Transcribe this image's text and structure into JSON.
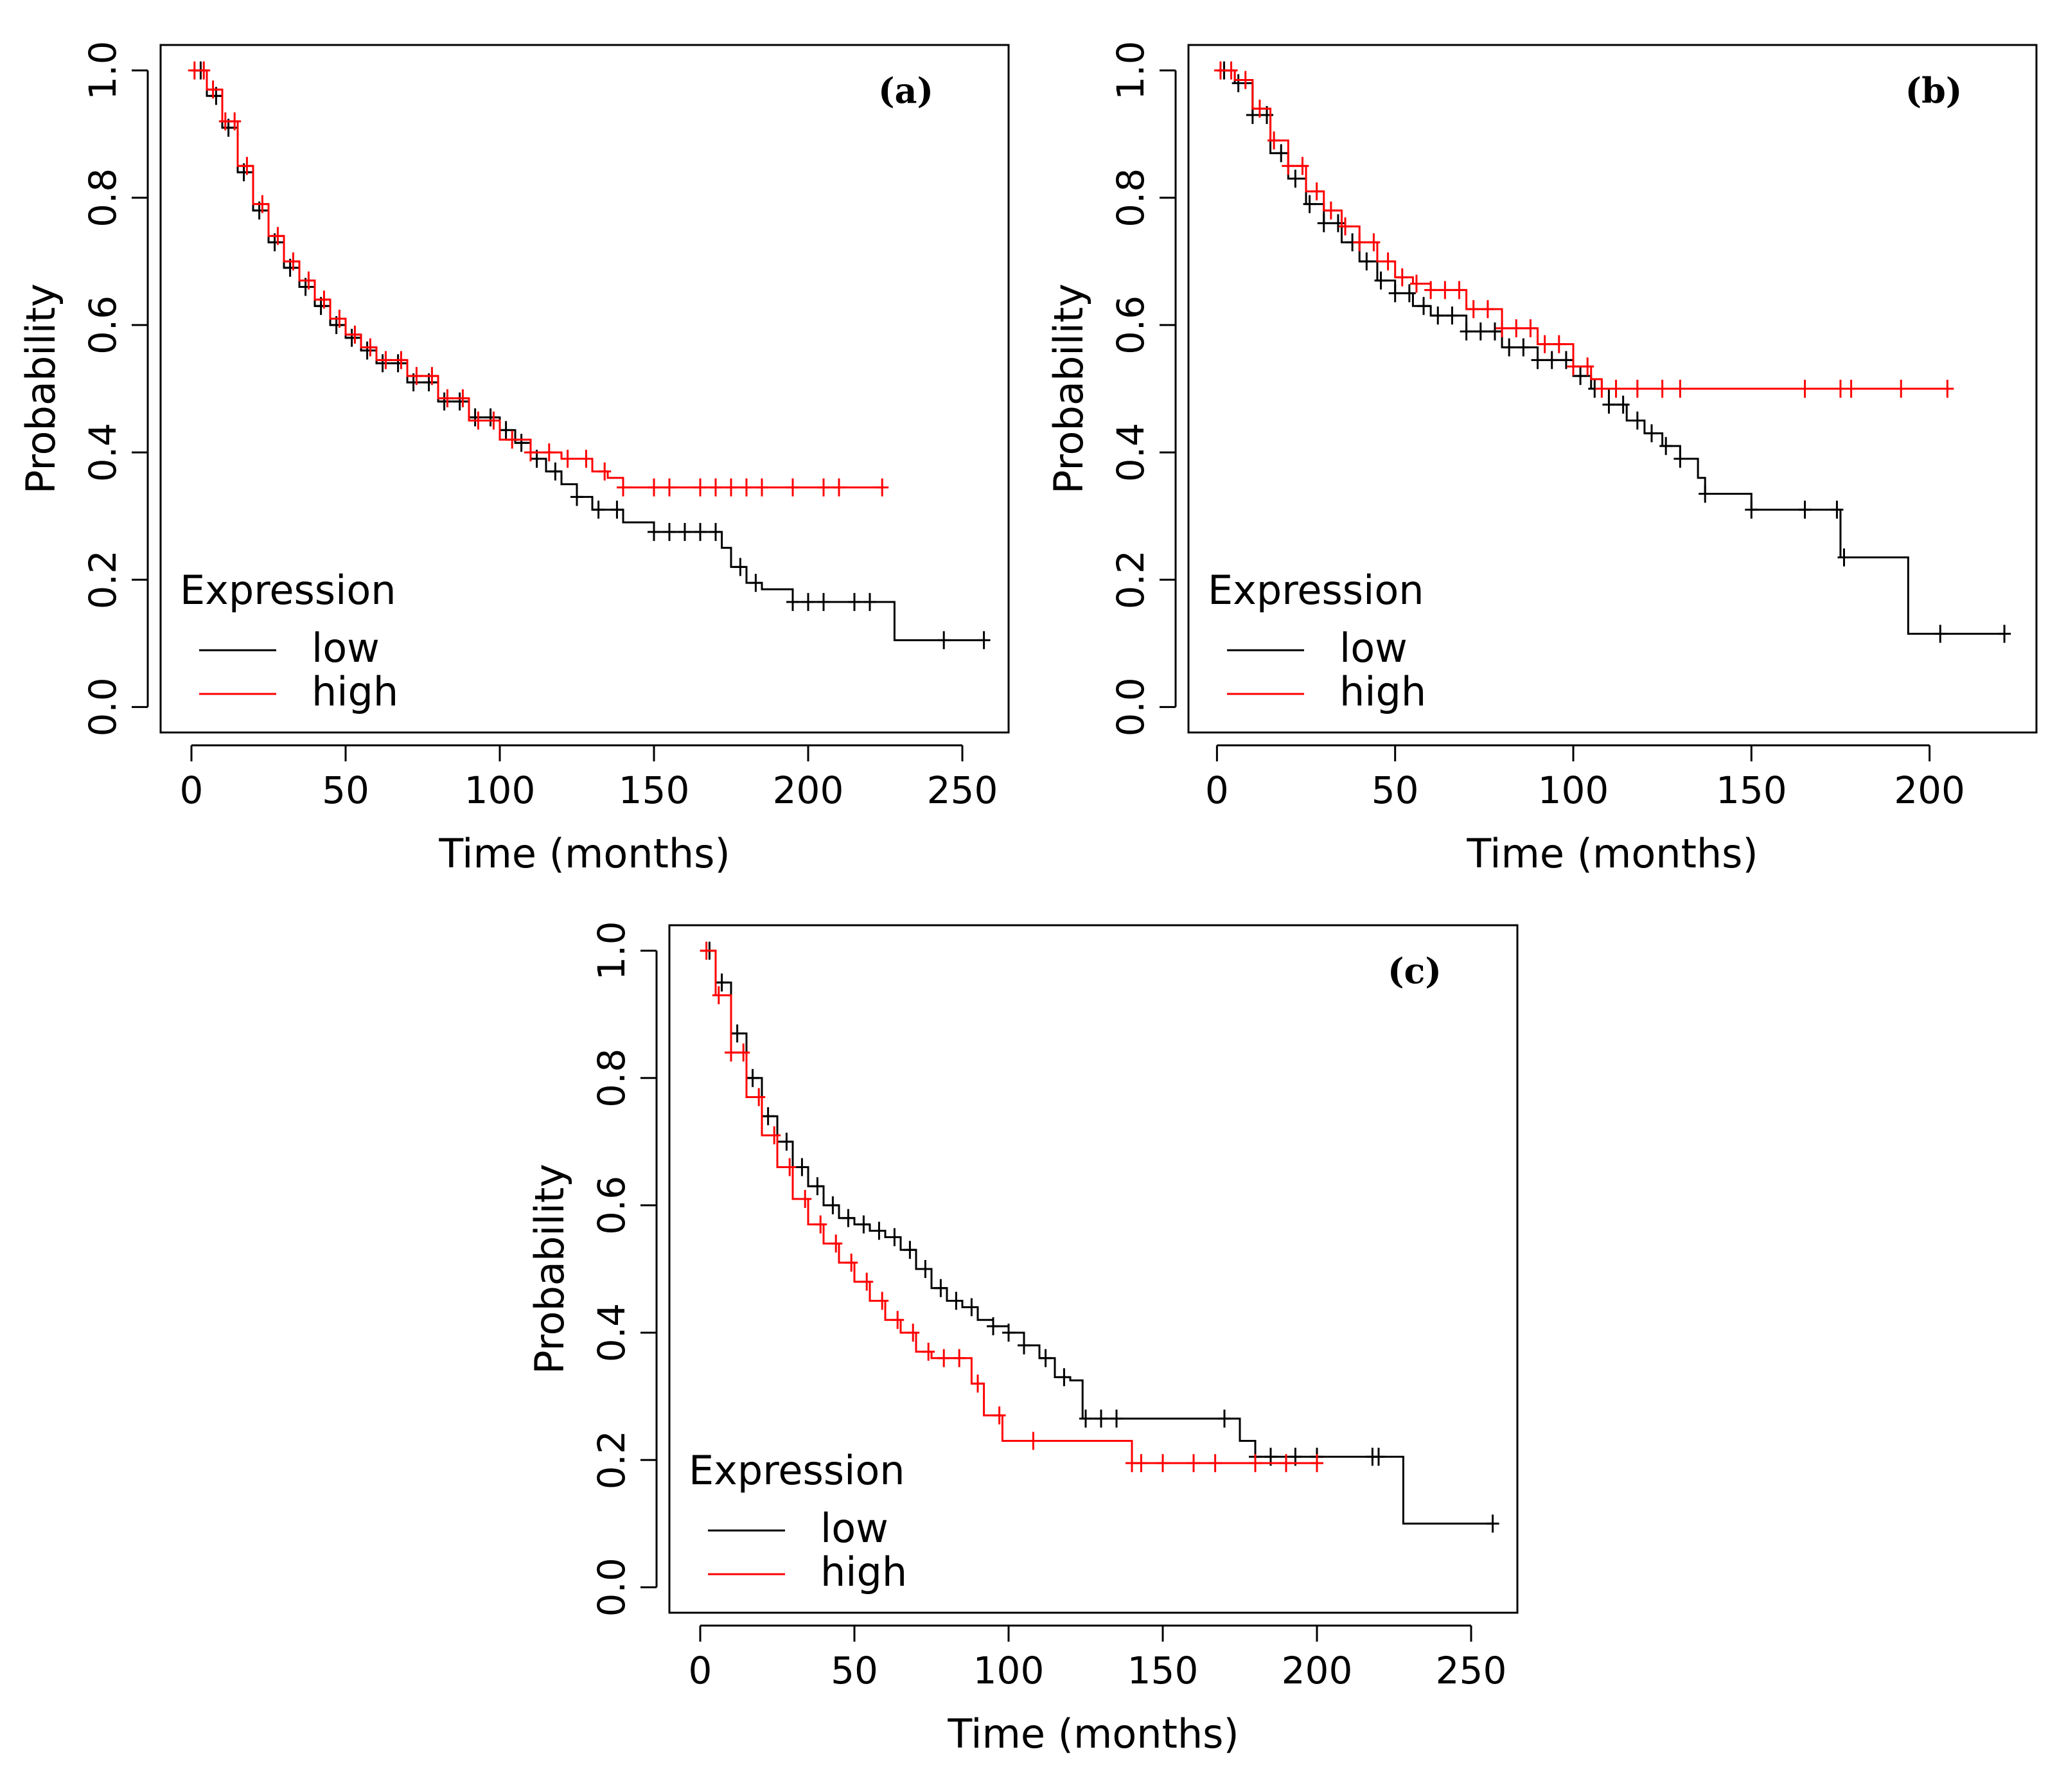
{
  "colors": {
    "low": "#000000",
    "high": "#ff0000",
    "axis": "#000000"
  },
  "chart_data": [
    {
      "type": "line",
      "panel_label": "(a)",
      "xlabel": "Time (months)",
      "ylabel": "Probability",
      "xlim": [
        -10,
        265
      ],
      "ylim": [
        -0.04,
        1.04
      ],
      "xticks": [
        0,
        50,
        100,
        150,
        200,
        250
      ],
      "yticks": [
        0.0,
        0.2,
        0.4,
        0.6,
        0.8,
        1.0
      ],
      "xtick_labels": [
        "0",
        "50",
        "100",
        "150",
        "200",
        "250"
      ],
      "ytick_labels": [
        "0.0",
        "0.2",
        "0.4",
        "0.6",
        "0.8",
        "1.0"
      ],
      "legend": {
        "title": "Expression",
        "entries": [
          "low",
          "high"
        ],
        "position": "bottom-left"
      },
      "series": [
        {
          "name": "low",
          "color": "#000000",
          "x": [
            0,
            5,
            10,
            15,
            20,
            25,
            30,
            35,
            40,
            45,
            50,
            55,
            60,
            70,
            80,
            90,
            100,
            105,
            110,
            115,
            120,
            125,
            130,
            140,
            150,
            160,
            172,
            175,
            180,
            185,
            195,
            200,
            210,
            228,
            257
          ],
          "y": [
            1.0,
            0.96,
            0.91,
            0.84,
            0.78,
            0.73,
            0.69,
            0.66,
            0.63,
            0.6,
            0.58,
            0.56,
            0.54,
            0.51,
            0.48,
            0.455,
            0.435,
            0.415,
            0.39,
            0.37,
            0.35,
            0.33,
            0.31,
            0.29,
            0.275,
            0.275,
            0.25,
            0.22,
            0.195,
            0.185,
            0.165,
            0.165,
            0.165,
            0.105,
            0.105
          ],
          "censor_x": [
            3,
            8,
            12,
            17,
            22,
            27,
            32,
            37,
            42,
            47,
            52,
            57,
            62,
            67,
            72,
            77,
            82,
            87,
            92,
            97,
            102,
            107,
            112,
            118,
            125,
            132,
            138,
            150,
            155,
            160,
            165,
            170,
            178,
            183,
            195,
            200,
            205,
            215,
            220,
            244,
            257
          ]
        },
        {
          "name": "high",
          "color": "#ff0000",
          "x": [
            0,
            5,
            10,
            15,
            20,
            25,
            30,
            35,
            40,
            45,
            50,
            55,
            60,
            70,
            80,
            90,
            100,
            110,
            120,
            130,
            135,
            140,
            224
          ],
          "y": [
            1.0,
            0.97,
            0.92,
            0.85,
            0.79,
            0.74,
            0.7,
            0.67,
            0.64,
            0.61,
            0.585,
            0.565,
            0.545,
            0.52,
            0.485,
            0.45,
            0.42,
            0.4,
            0.39,
            0.37,
            0.36,
            0.345,
            0.345
          ],
          "censor_x": [
            1,
            4,
            7,
            11,
            14,
            18,
            23,
            28,
            33,
            38,
            43,
            48,
            53,
            58,
            63,
            68,
            73,
            78,
            83,
            88,
            93,
            98,
            104,
            110,
            116,
            122,
            128,
            134,
            140,
            150,
            155,
            165,
            170,
            175,
            180,
            185,
            195,
            205,
            210,
            224
          ]
        }
      ]
    },
    {
      "type": "line",
      "panel_label": "(b)",
      "xlabel": "Time (months)",
      "ylabel": "Probability",
      "xlim": [
        -8,
        230
      ],
      "ylim": [
        -0.04,
        1.04
      ],
      "xticks": [
        0,
        50,
        100,
        150,
        200
      ],
      "yticks": [
        0.0,
        0.2,
        0.4,
        0.6,
        0.8,
        1.0
      ],
      "xtick_labels": [
        "0",
        "50",
        "100",
        "150",
        "200"
      ],
      "ytick_labels": [
        "0.0",
        "0.2",
        "0.4",
        "0.6",
        "0.8",
        "1.0"
      ],
      "legend": {
        "title": "Expression",
        "entries": [
          "low",
          "high"
        ],
        "position": "bottom-left"
      },
      "series": [
        {
          "name": "low",
          "color": "#000000",
          "x": [
            0,
            5,
            10,
            15,
            20,
            25,
            30,
            35,
            40,
            45,
            50,
            55,
            60,
            70,
            80,
            90,
            100,
            105,
            110,
            115,
            120,
            125,
            130,
            135,
            137,
            150,
            165,
            172,
            175,
            190,
            194,
            221
          ],
          "y": [
            1.0,
            0.98,
            0.93,
            0.87,
            0.83,
            0.79,
            0.76,
            0.73,
            0.7,
            0.67,
            0.65,
            0.63,
            0.615,
            0.59,
            0.565,
            0.545,
            0.52,
            0.5,
            0.475,
            0.45,
            0.43,
            0.41,
            0.39,
            0.36,
            0.335,
            0.31,
            0.31,
            0.31,
            0.235,
            0.235,
            0.115,
            0.115
          ],
          "censor_x": [
            2,
            6,
            10,
            14,
            18,
            22,
            26,
            30,
            34,
            38,
            42,
            46,
            50,
            54,
            58,
            62,
            66,
            70,
            74,
            78,
            82,
            86,
            90,
            94,
            98,
            102,
            106,
            110,
            114,
            118,
            122,
            126,
            130,
            137,
            150,
            165,
            174,
            176,
            203,
            221
          ]
        },
        {
          "name": "high",
          "color": "#ff0000",
          "x": [
            0,
            5,
            10,
            15,
            20,
            25,
            30,
            35,
            40,
            45,
            50,
            55,
            60,
            70,
            80,
            90,
            100,
            105,
            108,
            205
          ],
          "y": [
            1.0,
            0.985,
            0.94,
            0.89,
            0.85,
            0.81,
            0.78,
            0.755,
            0.73,
            0.7,
            0.675,
            0.665,
            0.655,
            0.625,
            0.595,
            0.57,
            0.535,
            0.515,
            0.5,
            0.5
          ],
          "censor_x": [
            1,
            4,
            8,
            12,
            16,
            20,
            24,
            28,
            32,
            36,
            40,
            44,
            48,
            52,
            56,
            60,
            64,
            68,
            72,
            76,
            80,
            84,
            88,
            92,
            96,
            100,
            104,
            108,
            112,
            118,
            125,
            130,
            165,
            175,
            178,
            192,
            205
          ]
        }
      ]
    },
    {
      "type": "line",
      "panel_label": "(c)",
      "xlabel": "Time (months)",
      "ylabel": "Probability",
      "xlim": [
        -10,
        265
      ],
      "ylim": [
        -0.04,
        1.04
      ],
      "xticks": [
        0,
        50,
        100,
        150,
        200,
        250
      ],
      "yticks": [
        0.0,
        0.2,
        0.4,
        0.6,
        0.8,
        1.0
      ],
      "xtick_labels": [
        "0",
        "50",
        "100",
        "150",
        "200",
        "250"
      ],
      "ytick_labels": [
        "0.0",
        "0.2",
        "0.4",
        "0.6",
        "0.8",
        "1.0"
      ],
      "legend": {
        "title": "Expression",
        "entries": [
          "low",
          "high"
        ],
        "position": "bottom-left"
      },
      "series": [
        {
          "name": "low",
          "color": "#000000",
          "x": [
            0,
            5,
            10,
            15,
            20,
            25,
            30,
            35,
            40,
            45,
            50,
            55,
            60,
            65,
            70,
            75,
            80,
            85,
            90,
            95,
            100,
            105,
            110,
            115,
            120,
            124,
            172,
            175,
            180,
            228,
            257
          ],
          "y": [
            1.0,
            0.95,
            0.87,
            0.8,
            0.74,
            0.7,
            0.66,
            0.63,
            0.6,
            0.58,
            0.57,
            0.56,
            0.55,
            0.53,
            0.5,
            0.47,
            0.45,
            0.44,
            0.42,
            0.41,
            0.4,
            0.38,
            0.36,
            0.33,
            0.325,
            0.265,
            0.265,
            0.23,
            0.205,
            0.1,
            0.1
          ],
          "censor_x": [
            3,
            7,
            12,
            17,
            22,
            28,
            33,
            38,
            43,
            48,
            53,
            58,
            63,
            68,
            73,
            78,
            83,
            88,
            95,
            100,
            105,
            112,
            118,
            125,
            130,
            135,
            170,
            180,
            185,
            193,
            200,
            218,
            220,
            257
          ]
        },
        {
          "name": "high",
          "color": "#ff0000",
          "x": [
            0,
            5,
            10,
            15,
            20,
            25,
            30,
            35,
            40,
            45,
            50,
            55,
            60,
            65,
            70,
            75,
            85,
            88,
            92,
            98,
            138,
            140,
            200
          ],
          "y": [
            1.0,
            0.93,
            0.84,
            0.77,
            0.71,
            0.66,
            0.61,
            0.57,
            0.54,
            0.51,
            0.48,
            0.45,
            0.42,
            0.4,
            0.37,
            0.36,
            0.36,
            0.32,
            0.27,
            0.23,
            0.23,
            0.195,
            0.195
          ],
          "censor_x": [
            2,
            6,
            10,
            14,
            19,
            24,
            29,
            34,
            39,
            44,
            49,
            54,
            59,
            64,
            69,
            74,
            79,
            84,
            90,
            97,
            108,
            140,
            143,
            150,
            160,
            167,
            180,
            190,
            200
          ]
        }
      ]
    }
  ]
}
